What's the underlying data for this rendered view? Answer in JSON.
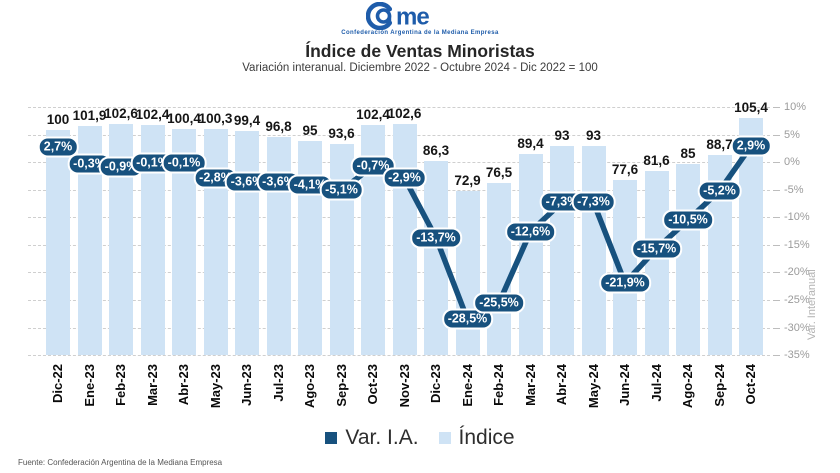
{
  "header": {
    "logo_text": "me",
    "logo_subtext": "Confederación Argentina de la Mediana Empresa",
    "title": "Índice de Ventas Minoristas",
    "subtitle": "Variación interanual. Diciembre 2022 - Octubre 2024 - Dic 2022 = 100"
  },
  "chart_data": {
    "type": "bar",
    "title": "Índice de Ventas Minoristas",
    "subtitle": "Variación interanual. Diciembre 2022 - Octubre 2024 - Dic 2022 = 100",
    "categories": [
      "Dic-22",
      "Ene-23",
      "Feb-23",
      "Mar-23",
      "Abr-23",
      "May-23",
      "Jun-23",
      "Jul-23",
      "Ago-23",
      "Sep-23",
      "Oct-23",
      "Nov-23",
      "Dic-23",
      "Ene-24",
      "Feb-24",
      "Mar-24",
      "Abr-24",
      "May-24",
      "Jun-24",
      "Jul-24",
      "Ago-24",
      "Sep-24",
      "Oct-24"
    ],
    "series": [
      {
        "name": "Índice",
        "type": "bar",
        "color": "#cfe3f5",
        "values": [
          100,
          101.9,
          102.6,
          102.4,
          100.4,
          100.3,
          99.4,
          96.8,
          95,
          93.6,
          102.4,
          102.6,
          86.3,
          72.9,
          76.5,
          89.4,
          93,
          93,
          77.6,
          81.6,
          85,
          88.7,
          105.4
        ],
        "labels": [
          "100",
          "101,9",
          "102,6",
          "102,4",
          "100,4",
          "100,3",
          "99,4",
          "96,8",
          "95",
          "93,6",
          "102,4",
          "102,6",
          "86,3",
          "72,9",
          "76,5",
          "89,4",
          "93",
          "93",
          "77,6",
          "81,6",
          "85",
          "88,7",
          "105,4"
        ]
      },
      {
        "name": "Var. I.A.",
        "type": "line",
        "color": "#17517e",
        "values": [
          2.7,
          -0.3,
          -0.9,
          -0.1,
          -0.1,
          -2.8,
          -3.6,
          -3.6,
          -4.1,
          -5.1,
          -0.7,
          -2.9,
          -13.7,
          -28.5,
          -25.5,
          -12.6,
          -7.3,
          -7.3,
          -21.9,
          -15.7,
          -10.5,
          -5.2,
          2.9
        ],
        "labels": [
          "2,7%",
          "-0,3%",
          "-0,9%",
          "-0,1%",
          "-0,1%",
          "-2,8%",
          "-3,6%",
          "-3,6%",
          "-4,1%",
          "-5,1%",
          "-0,7%",
          "-2,9%",
          "-13,7%",
          "-28,5%",
          "-25,5%",
          "-12,6%",
          "-7,3%",
          "-7,3%",
          "-21,9%",
          "-15,7%",
          "-10,5%",
          "-5,2%",
          "2,9%"
        ]
      }
    ],
    "right_axis": {
      "label": "Var. Interanual",
      "ticks": [
        "10%",
        "5%",
        "0%",
        "-5%",
        "-10%",
        "-15%",
        "-20%",
        "-25%",
        "-30%",
        "-35%"
      ],
      "tick_values": [
        10,
        5,
        0,
        -5,
        -10,
        -15,
        -20,
        -25,
        -30,
        -35
      ],
      "range": [
        -35,
        10
      ]
    },
    "grid": true,
    "legend_position": "bottom"
  },
  "legend": {
    "items": [
      {
        "label": "Var. I.A.",
        "color": "#17517e"
      },
      {
        "label": "Índice",
        "color": "#cfe3f5"
      }
    ]
  },
  "footer": {
    "source": "Fuente: Confederación Argentina de la Mediana Empresa"
  },
  "colors": {
    "bar": "#cfe3f5",
    "line": "#17517e",
    "logo_blue": "#1e5caa"
  }
}
